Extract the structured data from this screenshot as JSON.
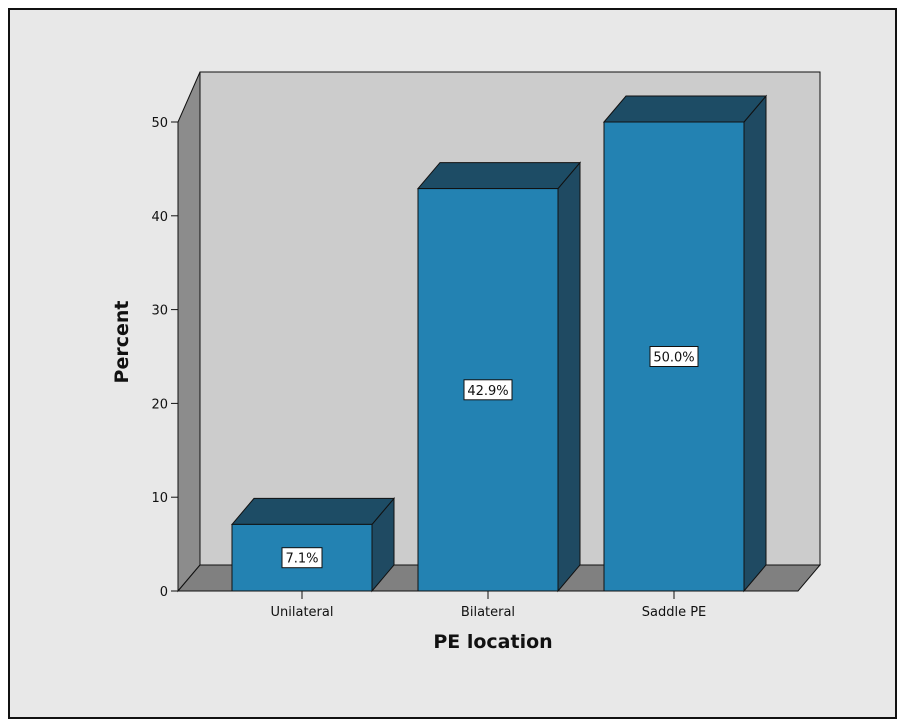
{
  "chart_data": {
    "type": "bar",
    "title": "",
    "xlabel": "PE location",
    "ylabel": "Percent",
    "categories": [
      "Unilateral",
      "Bilateral",
      "Saddle PE"
    ],
    "values": [
      7.1,
      42.9,
      50.0
    ],
    "data_labels": [
      "7.1%",
      "42.9%",
      "50.0%"
    ],
    "ylim": [
      0,
      50
    ],
    "yticks": [
      0,
      10,
      20,
      30,
      40,
      50
    ],
    "grid": false,
    "legend": "none",
    "style": "3d",
    "colors": {
      "bar_front": "#2382b2",
      "bar_top": "#1d4c65",
      "bar_side": "#1f4a62",
      "back_wall": "#cccccc",
      "floor": "#808080",
      "side_wall": "#8c8c8c",
      "background": "#e8e8e8"
    }
  }
}
